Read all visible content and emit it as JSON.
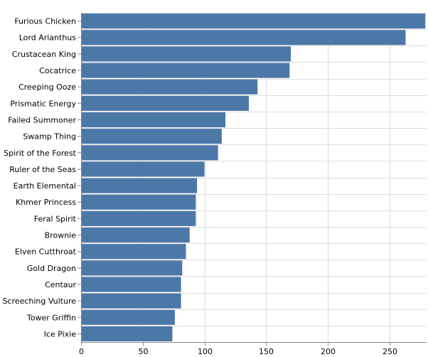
{
  "chart_data": {
    "type": "bar",
    "orientation": "horizontal",
    "categories": [
      "Furious Chicken",
      "Lord Arianthus",
      "Crustacean King",
      "Cocatrice",
      "Creeping Ooze",
      "Prismatic Energy",
      "Failed Summoner",
      "Swamp Thing",
      "Spirit of the Forest",
      "Ruler of the Seas",
      "Earth Elemental",
      "Khmer Princess",
      "Feral Spirit",
      "Brownie",
      "Elven Cutthroat",
      "Gold Dragon",
      "Centaur",
      "Screeching Vulture",
      "Tower Griffin",
      "Ice Pixie"
    ],
    "values": [
      279,
      263,
      170,
      169,
      143,
      136,
      117,
      114,
      111,
      100,
      94,
      93,
      93,
      88,
      85,
      82,
      81,
      81,
      76,
      74
    ],
    "xlim": [
      0,
      280
    ],
    "xticks": [
      0,
      50,
      100,
      150,
      200,
      250
    ],
    "grid": true,
    "bar_color": "#4c78a8",
    "title": "",
    "xlabel": "",
    "ylabel": ""
  }
}
